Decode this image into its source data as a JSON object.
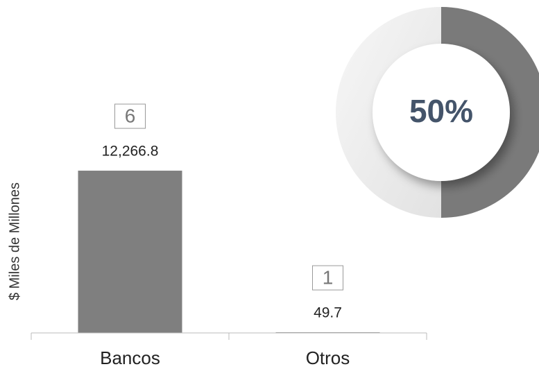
{
  "chart_data": [
    {
      "type": "bar",
      "y_label": "$ Miles de Millones",
      "categories": [
        "Bancos",
        "Otros"
      ],
      "values": [
        12266.8,
        49.7
      ],
      "value_labels": [
        "12,266.8",
        "49.7"
      ],
      "counts": [
        6,
        1
      ],
      "color": "#7f7f7f",
      "ylim": [
        0,
        14000
      ]
    },
    {
      "type": "pie",
      "values": [
        50,
        50
      ],
      "value_labels": [
        "50%",
        null
      ],
      "colors": [
        "#7a7a7a",
        "#eeeeee"
      ],
      "hole": true
    }
  ]
}
